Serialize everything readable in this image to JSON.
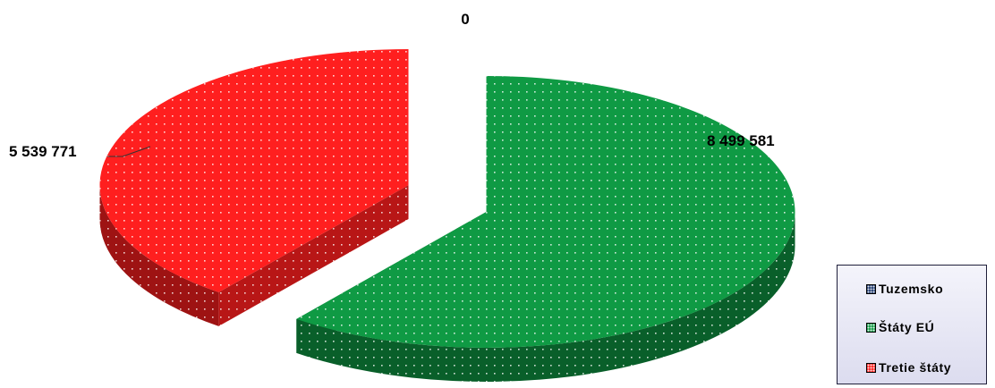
{
  "chart_data": {
    "type": "pie",
    "style": "3d-exploded",
    "slices": [
      {
        "label": "Tuzemsko",
        "value": 0,
        "value_label": "0",
        "color": "#1f3a70"
      },
      {
        "label": "Štáty EÚ",
        "value": 8499581,
        "value_label": "8 499 581",
        "color": "#0f9a44"
      },
      {
        "label": "Tretie štáty",
        "value": 5539771,
        "value_label": "5 539 771",
        "color": "#ff1f1f"
      }
    ],
    "legend_position": "bottom-right"
  }
}
